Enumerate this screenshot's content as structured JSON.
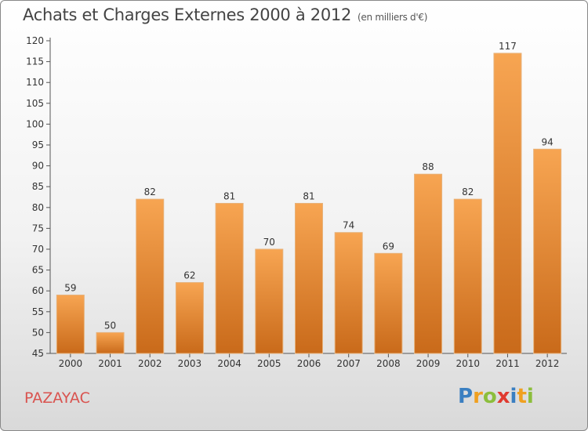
{
  "header": {
    "title": "Achats et Charges Externes 2000 à 2012",
    "subtitle": "(en milliers d'€)"
  },
  "footer": {
    "place": "PAZAYAC",
    "logo": [
      "P",
      "r",
      "o",
      "x",
      "i",
      "t",
      "i"
    ],
    "logo_colors": [
      "#3a7fc1",
      "#f0a020",
      "#8cbe3c",
      "#e03a2f",
      "#3a7fc1",
      "#f0a020",
      "#8cbe3c"
    ]
  },
  "chart_data": {
    "type": "bar",
    "title": "Achats et Charges Externes 2000 à 2012",
    "subtitle": "(en milliers d'€)",
    "categories": [
      "2000",
      "2001",
      "2002",
      "2003",
      "2004",
      "2005",
      "2006",
      "2007",
      "2008",
      "2009",
      "2010",
      "2011",
      "2012"
    ],
    "values": [
      59,
      50,
      82,
      62,
      81,
      70,
      81,
      74,
      69,
      88,
      82,
      117,
      94
    ],
    "ylim": [
      45,
      120
    ],
    "yticks": [
      45,
      50,
      55,
      60,
      65,
      70,
      75,
      80,
      85,
      90,
      95,
      100,
      105,
      110,
      115,
      120
    ],
    "xlabel": "",
    "ylabel": "",
    "grid": false,
    "bar_color_top": "#f7a552",
    "bar_color_bottom": "#c96a1a"
  }
}
